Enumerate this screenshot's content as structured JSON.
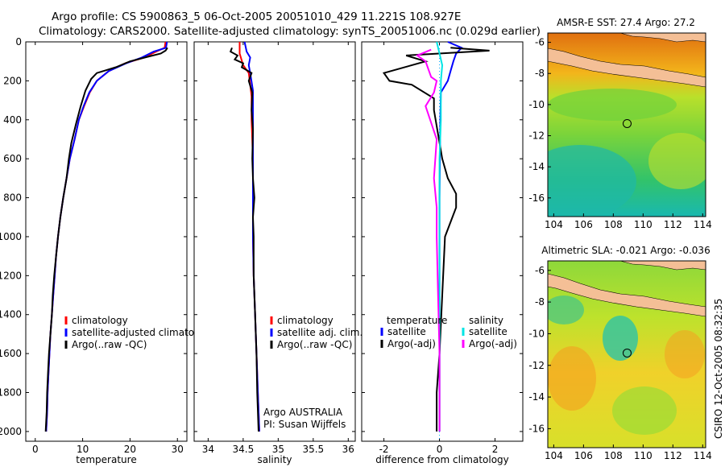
{
  "title": {
    "line1": "Argo profile: CS 5900863_5 06-Oct-2005 20051010_429 11.221S 108.927E",
    "line2": "Climatology: CARS2000. Satellite-adjusted climatology: synTS_20051006.nc (0.029d earlier)"
  },
  "colors": {
    "climatology": "#ff0000",
    "satellite": "#0000ff",
    "argo": "#000000",
    "sat_salinity": "#00e5e5",
    "argo_salinity": "#ff00ff"
  },
  "depth_ticks": [
    "0",
    "200",
    "400",
    "600",
    "800",
    "1000",
    "1200",
    "1400",
    "1600",
    "1800",
    "2000"
  ],
  "credit": "CSIRO 12-Oct-2005 08:32:35",
  "chart_data": [
    {
      "type": "line",
      "id": "temperature",
      "xlabel": "temperature",
      "ylabel": "",
      "xlim": [
        -2,
        32
      ],
      "ylim": [
        2050,
        0
      ],
      "xticks": [
        "0",
        "10",
        "20",
        "30"
      ],
      "legend": [
        "climatology",
        "satellite-adjusted climatolog",
        "Argo(..raw -QC)"
      ],
      "series": [
        {
          "name": "climatology",
          "color": "#ff0000",
          "points": [
            [
              27.5,
              0
            ],
            [
              27.3,
              30
            ],
            [
              25.5,
              50
            ],
            [
              23,
              80
            ],
            [
              19,
              110
            ],
            [
              15.5,
              150
            ],
            [
              13,
              200
            ],
            [
              11.5,
              260
            ],
            [
              10.3,
              330
            ],
            [
              9.2,
              400
            ],
            [
              8.3,
              500
            ],
            [
              7.3,
              600
            ],
            [
              6.6,
              700
            ],
            [
              5.9,
              800
            ],
            [
              5.3,
              900
            ],
            [
              4.8,
              1000
            ],
            [
              4.4,
              1100
            ],
            [
              4.1,
              1200
            ],
            [
              3.8,
              1300
            ],
            [
              3.5,
              1400
            ],
            [
              3.2,
              1500
            ],
            [
              3,
              1600
            ],
            [
              2.8,
              1700
            ],
            [
              2.6,
              1800
            ],
            [
              2.5,
              1900
            ],
            [
              2.3,
              2000
            ]
          ]
        },
        {
          "name": "satellite-adjusted climatolog",
          "color": "#0000ff",
          "points": [
            [
              27.8,
              0
            ],
            [
              27.6,
              30
            ],
            [
              25,
              50
            ],
            [
              22.5,
              80
            ],
            [
              19.2,
              110
            ],
            [
              15.5,
              150
            ],
            [
              13,
              200
            ],
            [
              11.4,
              260
            ],
            [
              10.2,
              330
            ],
            [
              9.2,
              400
            ],
            [
              8.3,
              500
            ],
            [
              7.3,
              600
            ],
            [
              6.6,
              700
            ],
            [
              5.9,
              800
            ],
            [
              5.3,
              900
            ],
            [
              4.8,
              1000
            ],
            [
              4.4,
              1100
            ],
            [
              4.1,
              1200
            ],
            [
              3.8,
              1300
            ],
            [
              3.5,
              1400
            ],
            [
              3.2,
              1500
            ],
            [
              3,
              1600
            ],
            [
              2.8,
              1700
            ],
            [
              2.6,
              1800
            ],
            [
              2.5,
              1900
            ],
            [
              2.3,
              2000
            ]
          ]
        },
        {
          "name": "Argo(..raw -QC)",
          "color": "#000000",
          "points": [
            [
              27.9,
              30
            ],
            [
              27.5,
              45
            ],
            [
              26.5,
              60
            ],
            [
              24,
              75
            ],
            [
              20,
              100
            ],
            [
              17,
              130
            ],
            [
              13,
              160
            ],
            [
              11.8,
              190
            ],
            [
              10.6,
              250
            ],
            [
              9.6,
              330
            ],
            [
              8.6,
              420
            ],
            [
              7.6,
              520
            ],
            [
              7.1,
              600
            ],
            [
              6.6,
              700
            ],
            [
              5.9,
              800
            ],
            [
              5.3,
              900
            ],
            [
              4.8,
              1000
            ],
            [
              4.4,
              1100
            ],
            [
              4,
              1200
            ],
            [
              3.7,
              1300
            ],
            [
              3.5,
              1400
            ],
            [
              3.2,
              1500
            ],
            [
              2.9,
              1600
            ],
            [
              2.7,
              1700
            ],
            [
              2.5,
              1800
            ],
            [
              2.4,
              1900
            ],
            [
              2.2,
              2000
            ]
          ]
        }
      ]
    },
    {
      "type": "line",
      "id": "salinity",
      "xlabel": "salinity",
      "ylabel": "",
      "xlim": [
        33.8,
        36.1
      ],
      "ylim": [
        2050,
        0
      ],
      "xticks": [
        "34",
        "34.5",
        "35",
        "35.5",
        "36"
      ],
      "legend": [
        "climatology",
        "satellite adj. clim.",
        "Argo(..raw -QC)"
      ],
      "annotation": [
        "Argo AUSTRALIA",
        "PI: Susan Wijffels"
      ],
      "series": [
        {
          "name": "climatology",
          "color": "#ff0000",
          "points": [
            [
              34.45,
              0
            ],
            [
              34.45,
              60
            ],
            [
              34.5,
              120
            ],
            [
              34.58,
              160
            ],
            [
              34.6,
              220
            ],
            [
              34.62,
              280
            ],
            [
              34.62,
              400
            ],
            [
              34.64,
              600
            ],
            [
              34.64,
              800
            ],
            [
              34.64,
              1000
            ],
            [
              34.65,
              1200
            ],
            [
              34.67,
              1400
            ],
            [
              34.69,
              1600
            ],
            [
              34.71,
              1800
            ],
            [
              34.73,
              2000
            ]
          ]
        },
        {
          "name": "satellite adj. clim.",
          "color": "#0000ff",
          "points": [
            [
              34.52,
              0
            ],
            [
              34.55,
              50
            ],
            [
              34.6,
              80
            ],
            [
              34.58,
              120
            ],
            [
              34.6,
              160
            ],
            [
              34.64,
              250
            ],
            [
              34.64,
              400
            ],
            [
              34.64,
              600
            ],
            [
              34.64,
              800
            ],
            [
              34.64,
              1000
            ],
            [
              34.65,
              1200
            ],
            [
              34.67,
              1400
            ],
            [
              34.69,
              1600
            ],
            [
              34.71,
              1800
            ],
            [
              34.73,
              2000
            ]
          ]
        },
        {
          "name": "Argo(..raw -QC)",
          "color": "#000000",
          "points": [
            [
              34.34,
              30
            ],
            [
              34.32,
              50
            ],
            [
              34.42,
              70
            ],
            [
              34.38,
              90
            ],
            [
              34.5,
              110
            ],
            [
              34.48,
              130
            ],
            [
              34.62,
              160
            ],
            [
              34.58,
              200
            ],
            [
              34.63,
              260
            ],
            [
              34.62,
              350
            ],
            [
              34.64,
              450
            ],
            [
              34.63,
              600
            ],
            [
              34.64,
              700
            ],
            [
              34.66,
              800
            ],
            [
              34.64,
              900
            ],
            [
              34.65,
              1000
            ],
            [
              34.65,
              1200
            ],
            [
              34.67,
              1400
            ],
            [
              34.69,
              1600
            ],
            [
              34.7,
              1800
            ],
            [
              34.72,
              2000
            ]
          ]
        }
      ]
    },
    {
      "type": "line",
      "id": "difference",
      "xlabel": "difference from climatology",
      "ylabel": "",
      "xlim": [
        -2.8,
        3.0
      ],
      "ylim": [
        2050,
        0
      ],
      "xticks": [
        "-2",
        "0",
        "2"
      ],
      "legend_left_title": "temperature",
      "legend_right_title": "salinity",
      "legend_left": [
        "satellite",
        "Argo(-adj)"
      ],
      "legend_right": [
        "satellite",
        "Argo(-adj)"
      ],
      "series": [
        {
          "name": "temperature satellite",
          "color": "#0000ff",
          "points": [
            [
              0.3,
              0
            ],
            [
              0.8,
              30
            ],
            [
              0.6,
              60
            ],
            [
              0.5,
              100
            ],
            [
              0.4,
              150
            ],
            [
              0.3,
              200
            ],
            [
              0.05,
              260
            ],
            [
              0.03,
              400
            ],
            [
              0,
              800
            ],
            [
              0,
              2000
            ]
          ]
        },
        {
          "name": "temperature Argo(-adj)",
          "color": "#000000",
          "points": [
            [
              0.4,
              30
            ],
            [
              1.8,
              45
            ],
            [
              -1.2,
              70
            ],
            [
              -0.5,
              100
            ],
            [
              -2,
              160
            ],
            [
              -1.8,
              200
            ],
            [
              -1,
              220
            ],
            [
              -0.2,
              290
            ],
            [
              -0.2,
              350
            ],
            [
              0.1,
              600
            ],
            [
              0.3,
              700
            ],
            [
              0.6,
              780
            ],
            [
              0.6,
              850
            ],
            [
              0.2,
              1000
            ],
            [
              0.1,
              1300
            ],
            [
              0,
              1600
            ],
            [
              -0.1,
              1800
            ],
            [
              -0.1,
              2000
            ]
          ]
        },
        {
          "name": "salinity satellite",
          "color": "#00e5e5",
          "points": [
            [
              -0.1,
              0
            ],
            [
              0,
              60
            ],
            [
              0.1,
              120
            ],
            [
              0.05,
              200
            ],
            [
              0.05,
              400
            ],
            [
              0,
              600
            ],
            [
              0,
              2000
            ]
          ]
        },
        {
          "name": "salinity Argo(-adj)",
          "color": "#ff00ff",
          "points": [
            [
              -0.3,
              40
            ],
            [
              -0.8,
              70
            ],
            [
              -0.5,
              100
            ],
            [
              -0.3,
              180
            ],
            [
              -0.1,
              200
            ],
            [
              -0.2,
              260
            ],
            [
              -0.5,
              330
            ],
            [
              -0.1,
              500
            ],
            [
              -0.2,
              700
            ],
            [
              -0.1,
              850
            ],
            [
              -0.1,
              1000
            ],
            [
              -0.05,
              1300
            ],
            [
              0,
              1600
            ],
            [
              0,
              2000
            ]
          ]
        }
      ]
    },
    {
      "type": "heatmap",
      "id": "sst_map",
      "title": "AMSR-E SST: 27.4 Argo: 27.2",
      "xticks": [
        "104",
        "106",
        "108",
        "110",
        "112",
        "114"
      ],
      "yticks": [
        "-6",
        "-8",
        "-10",
        "-12",
        "-14",
        "-16"
      ],
      "xlim": [
        103.6,
        114.2
      ],
      "ylim": [
        -17.2,
        -5.4
      ],
      "marker": [
        108.927,
        -11.221
      ]
    },
    {
      "type": "heatmap",
      "id": "sla_map",
      "title": "Altimetric SLA: -0.021 Argo: -0.036",
      "xticks": [
        "104",
        "106",
        "108",
        "110",
        "112",
        "114"
      ],
      "yticks": [
        "-6",
        "-8",
        "-10",
        "-12",
        "-14",
        "-16"
      ],
      "xlim": [
        103.6,
        114.2
      ],
      "ylim": [
        -17.2,
        -5.4
      ],
      "marker": [
        108.927,
        -11.221
      ]
    }
  ]
}
